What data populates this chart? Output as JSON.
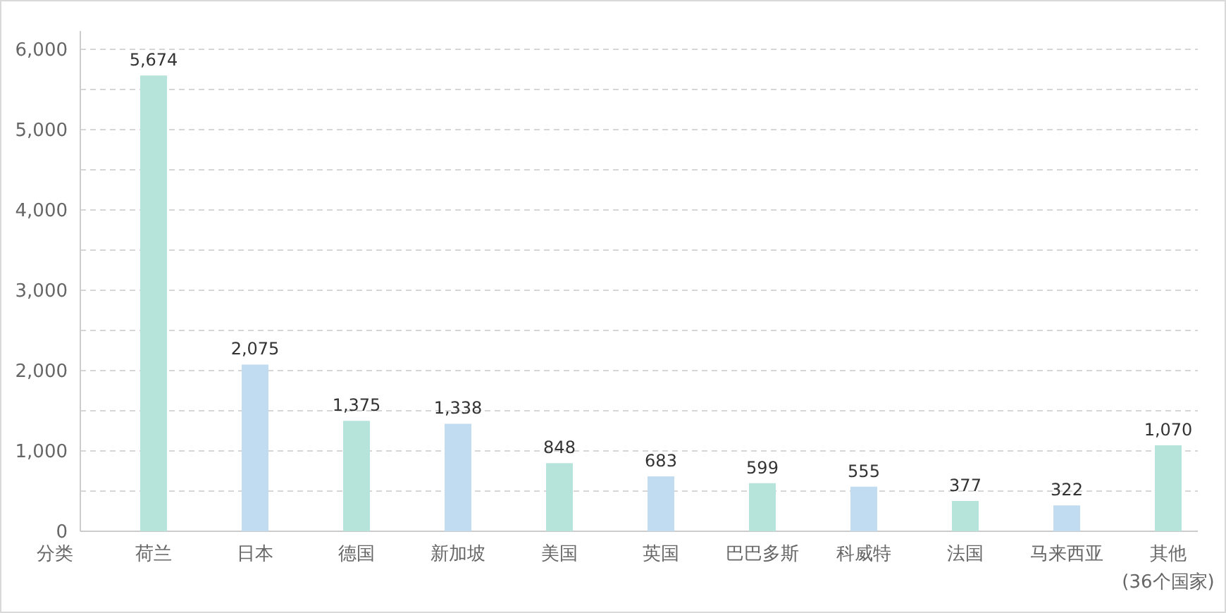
{
  "chart_data": {
    "type": "bar",
    "xlabel": "分类",
    "categories": [
      "荷兰",
      "日本",
      "德国",
      "新加坡",
      "美国",
      "英国",
      "巴巴多斯",
      "科威特",
      "法国",
      "马来西亚",
      "其他\n(36个国家)"
    ],
    "values": [
      5674,
      2075,
      1375,
      1338,
      848,
      683,
      599,
      555,
      377,
      322,
      1070
    ],
    "value_labels": [
      "5,674",
      "2,075",
      "1,375",
      "1,338",
      "848",
      "683",
      "599",
      "555",
      "377",
      "322",
      "1,070"
    ],
    "colors": [
      "#b6e4da",
      "#c1dbf0",
      "#b6e4da",
      "#c1dbf0",
      "#b6e4da",
      "#c1dbf0",
      "#b6e4da",
      "#c1dbf0",
      "#b6e4da",
      "#c1dbf0",
      "#b6e4da"
    ],
    "ylim": [
      0,
      6000
    ],
    "yticks": [
      0,
      {
        "value": 500,
        "label": null
      },
      {
        "value": 1000,
        "label": "1,000"
      },
      {
        "value": 1500,
        "label": null
      },
      {
        "value": 2000,
        "label": "2,000"
      },
      {
        "value": 2500,
        "label": null
      },
      {
        "value": 3000,
        "label": "3,000"
      },
      {
        "value": 3500,
        "label": null
      },
      {
        "value": 4000,
        "label": "4,000"
      },
      {
        "value": 4500,
        "label": null
      },
      {
        "value": 5000,
        "label": "5,000"
      },
      {
        "value": 5500,
        "label": null
      },
      {
        "value": 6000,
        "label": "6,000"
      }
    ],
    "grid": "y"
  }
}
